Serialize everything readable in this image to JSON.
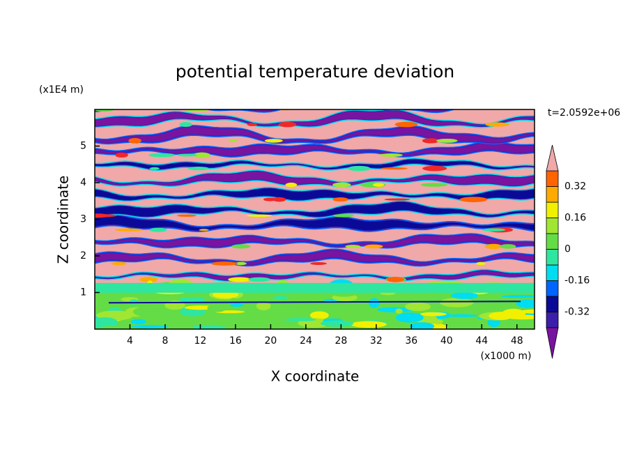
{
  "chart_data": {
    "type": "contour",
    "title": "potential temperature deviation",
    "x_label": "X coordinate",
    "y_label": "Z coordinate",
    "x_unit": "(x1000 m)",
    "y_unit": "(x1E4 m)",
    "time_label": "t=2.0592e+06",
    "xlim": [
      0,
      50
    ],
    "xticks": [
      4,
      8,
      12,
      16,
      20,
      24,
      28,
      32,
      36,
      40,
      44,
      48
    ],
    "ylim": [
      0,
      6
    ],
    "yticks": [
      1,
      2,
      3,
      4,
      5
    ],
    "colorbar": {
      "levels": [
        -0.4,
        -0.32,
        -0.24,
        -0.16,
        -0.08,
        0,
        0.08,
        0.16,
        0.24,
        0.32,
        0.4
      ],
      "ticks": [
        -0.32,
        -0.16,
        0,
        0.16,
        0.32
      ],
      "colors": [
        "#7814a0",
        "#3c1eaa",
        "#0a0a96",
        "#0064ff",
        "#00dcf0",
        "#2ee6a0",
        "#64dc46",
        "#a0e632",
        "#f0f000",
        "#ffaa00",
        "#ff6400",
        "#f02828",
        "#f0a8a8"
      ]
    }
  }
}
